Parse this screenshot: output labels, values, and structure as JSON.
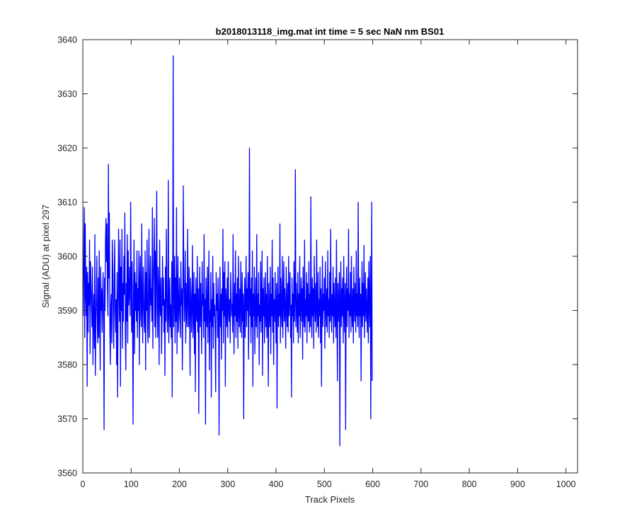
{
  "chart_data": {
    "type": "line",
    "title": "b2018013118_img.mat int time = 5 sec  NaN nm BS01",
    "xlabel": "Track Pixels",
    "ylabel": "Signal (ADU) at pixel 297",
    "xlim": [
      0,
      1024
    ],
    "ylim": [
      3560,
      3640
    ],
    "xticks": [
      0,
      100,
      200,
      300,
      400,
      500,
      600,
      700,
      800,
      900,
      1000
    ],
    "yticks": [
      3560,
      3570,
      3580,
      3590,
      3600,
      3610,
      3620,
      3630,
      3640
    ],
    "grid": false,
    "line_color": "#0000ff",
    "series": [
      {
        "name": "",
        "x_start": 1,
        "x_step": 1,
        "values": [
          3589,
          3602,
          3609,
          3585,
          3606,
          3594,
          3589,
          3598,
          3576,
          3597,
          3586,
          3595,
          3591,
          3603,
          3582,
          3599,
          3595,
          3591,
          3587,
          3598,
          3580,
          3589,
          3593,
          3583,
          3604,
          3578,
          3588,
          3592,
          3600,
          3587,
          3584,
          3596,
          3585,
          3601,
          3589,
          3579,
          3598,
          3590,
          3594,
          3586,
          3592,
          3597,
          3588,
          3568,
          3596,
          3590,
          3603,
          3607,
          3599,
          3606,
          3594,
          3589,
          3617,
          3596,
          3608,
          3586,
          3580,
          3591,
          3593,
          3584,
          3603,
          3598,
          3589,
          3583,
          3596,
          3603,
          3590,
          3586,
          3592,
          3580,
          3597,
          3574,
          3590,
          3605,
          3593,
          3588,
          3603,
          3576,
          3598,
          3590,
          3605,
          3583,
          3595,
          3588,
          3600,
          3593,
          3608,
          3586,
          3579,
          3595,
          3588,
          3604,
          3584,
          3601,
          3591,
          3593,
          3598,
          3589,
          3610,
          3596,
          3586,
          3599,
          3588,
          3569,
          3593,
          3603,
          3582,
          3597,
          3590,
          3595,
          3588,
          3601,
          3585,
          3594,
          3590,
          3601,
          3580,
          3595,
          3600,
          3589,
          3587,
          3606,
          3591,
          3584,
          3598,
          3593,
          3588,
          3586,
          3601,
          3579,
          3597,
          3590,
          3603,
          3587,
          3584,
          3596,
          3605,
          3585,
          3592,
          3600,
          3591,
          3594,
          3588,
          3609,
          3583,
          3595,
          3600,
          3607,
          3587,
          3601,
          3585,
          3597,
          3612,
          3590,
          3585,
          3598,
          3593,
          3580,
          3603,
          3591,
          3589,
          3596,
          3582,
          3588,
          3600,
          3591,
          3596,
          3586,
          3592,
          3578,
          3598,
          3588,
          3605,
          3593,
          3586,
          3589,
          3614,
          3584,
          3590,
          3596,
          3587,
          3591,
          3585,
          3599,
          3574,
          3594,
          3637,
          3587,
          3592,
          3600,
          3584,
          3596,
          3588,
          3609,
          3582,
          3593,
          3600,
          3586,
          3590,
          3596,
          3589,
          3585,
          3599,
          3591,
          3594,
          3579,
          3590,
          3613,
          3596,
          3588,
          3592,
          3601,
          3584,
          3595,
          3589,
          3587,
          3605,
          3592,
          3587,
          3598,
          3590,
          3578,
          3596,
          3593,
          3586,
          3591,
          3602,
          3585,
          3589,
          3597,
          3582,
          3593,
          3575,
          3596,
          3590,
          3588,
          3600,
          3586,
          3594,
          3571,
          3591,
          3598,
          3587,
          3595,
          3589,
          3582,
          3599,
          3591,
          3593,
          3585,
          3604,
          3588,
          3592,
          3569,
          3596,
          3590,
          3587,
          3598,
          3584,
          3593,
          3601,
          3579,
          3590,
          3588,
          3597,
          3574,
          3592,
          3587,
          3600,
          3583,
          3595,
          3589,
          3591,
          3586,
          3575,
          3597,
          3590,
          3593,
          3585,
          3596,
          3589,
          3567,
          3591,
          3598,
          3587,
          3593,
          3581,
          3594,
          3590,
          3605,
          3584,
          3597,
          3589,
          3599,
          3576,
          3594,
          3591,
          3587,
          3596,
          3585,
          3599,
          3590,
          3588,
          3592,
          3584,
          3597,
          3593,
          3589,
          3591,
          3586,
          3604,
          3590,
          3582,
          3595,
          3589,
          3601,
          3585,
          3593,
          3588,
          3596,
          3583,
          3600,
          3590,
          3587,
          3594,
          3586,
          3599,
          3591,
          3585,
          3597,
          3588,
          3593,
          3570,
          3590,
          3596,
          3585,
          3592,
          3600,
          3587,
          3594,
          3590,
          3597,
          3581,
          3592,
          3620,
          3589,
          3594,
          3584,
          3596,
          3587,
          3601,
          3576,
          3593,
          3589,
          3598,
          3582,
          3590,
          3596,
          3587,
          3604,
          3585,
          3593,
          3589,
          3597,
          3580,
          3591,
          3588,
          3599,
          3586,
          3592,
          3601,
          3578,
          3594,
          3589,
          3596,
          3584,
          3590,
          3597,
          3587,
          3593,
          3585,
          3600,
          3589,
          3576,
          3595,
          3590,
          3587,
          3598,
          3582,
          3593,
          3589,
          3603,
          3586,
          3596,
          3580,
          3592,
          3588,
          3597,
          3590,
          3584,
          3595,
          3572,
          3591,
          3598,
          3587,
          3593,
          3589,
          3606,
          3584,
          3596,
          3590,
          3587,
          3600,
          3585,
          3592,
          3599,
          3588,
          3594,
          3590,
          3583,
          3598,
          3591,
          3587,
          3595,
          3586,
          3600,
          3589,
          3593,
          3597,
          3585,
          3591,
          3574,
          3596,
          3589,
          3593,
          3584,
          3599,
          3588,
          3592,
          3616,
          3587,
          3595,
          3590,
          3586,
          3597,
          3584,
          3593,
          3589,
          3600,
          3585,
          3591,
          3596,
          3588,
          3594,
          3581,
          3598,
          3590,
          3587,
          3603,
          3586,
          3592,
          3589,
          3597,
          3584,
          3595,
          3590,
          3588,
          3599,
          3586,
          3593,
          3587,
          3611,
          3590,
          3585,
          3596,
          3589,
          3594,
          3583,
          3600,
          3591,
          3588,
          3595,
          3586,
          3603,
          3590,
          3587,
          3597,
          3585,
          3592,
          3589,
          3598,
          3584,
          3594,
          3576,
          3591,
          3600,
          3587,
          3593,
          3590,
          3596,
          3583,
          3599,
          3591,
          3587,
          3594,
          3586,
          3601,
          3589,
          3592,
          3585,
          3597,
          3588,
          3605,
          3590,
          3586,
          3593,
          3589,
          3598,
          3584,
          3595,
          3590,
          3587,
          3596,
          3585,
          3603,
          3590,
          3577,
          3595,
          3588,
          3592,
          3597,
          3565,
          3591,
          3599,
          3587,
          3594,
          3589,
          3596,
          3584,
          3600,
          3590,
          3586,
          3595,
          3568,
          3592,
          3598,
          3587,
          3594,
          3590,
          3605,
          3585,
          3593,
          3589,
          3597,
          3586,
          3600,
          3590,
          3587,
          3594,
          3584,
          3598,
          3591,
          3588,
          3595,
          3586,
          3601,
          3589,
          3593,
          3587,
          3610,
          3590,
          3585,
          3596,
          3589,
          3593,
          3577,
          3592,
          3599,
          3587,
          3595,
          3589,
          3602,
          3585,
          3591,
          3597,
          3588,
          3594,
          3590,
          3586,
          3596,
          3584,
          3599,
          3591,
          3587,
          3600,
          3570,
          3589,
          3610,
          3577
        ]
      }
    ]
  }
}
